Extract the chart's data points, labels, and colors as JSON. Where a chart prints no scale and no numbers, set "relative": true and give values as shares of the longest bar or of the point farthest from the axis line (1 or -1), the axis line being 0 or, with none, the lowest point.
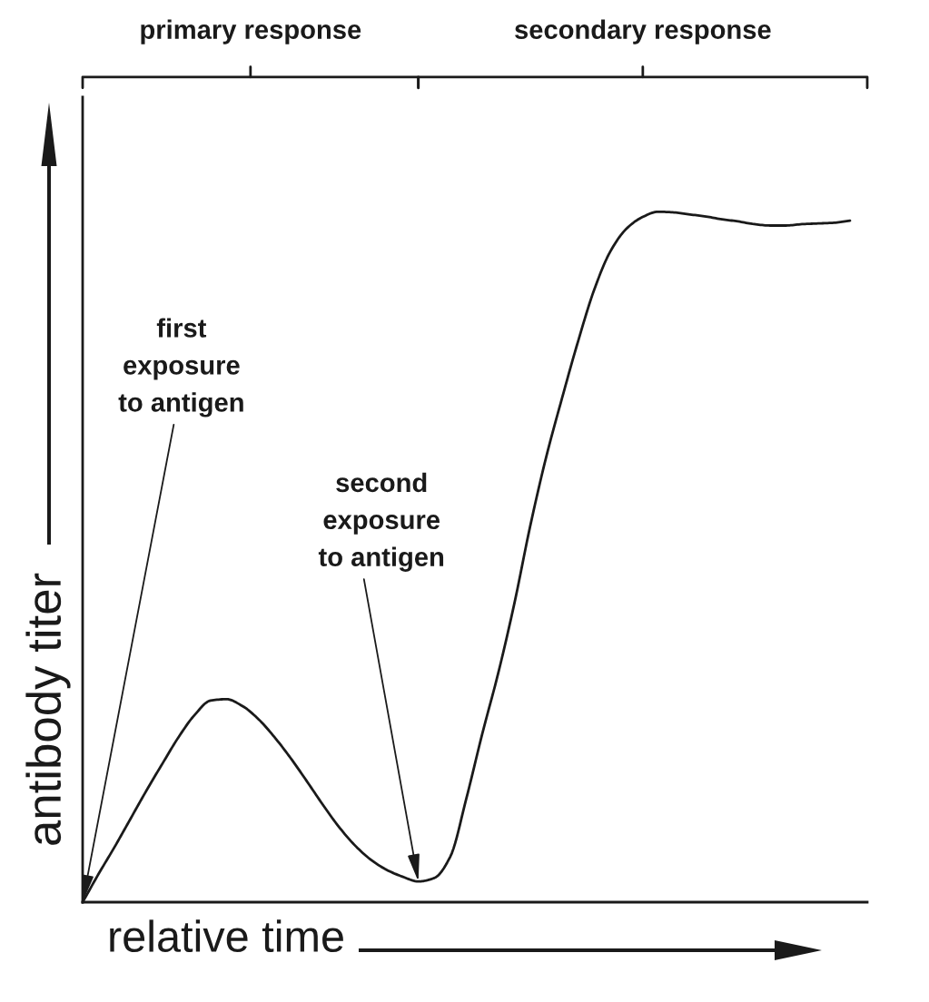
{
  "chart_data": {
    "type": "line",
    "relative": true,
    "xlabel": "relative time",
    "ylabel": "antibody titer",
    "line_style": "solid",
    "annotations": [
      "primary response",
      "secondary response",
      "first\nexposure\nto antigen",
      "second\nexposure\nto antigen"
    ],
    "categories": [
      null,
      null,
      null,
      null,
      null,
      null,
      null,
      null,
      null,
      null,
      null,
      null,
      null,
      null,
      null,
      null,
      null,
      null,
      null,
      null,
      null,
      null,
      null,
      null,
      null,
      null,
      null,
      null,
      null,
      null,
      null,
      null,
      null,
      null,
      null,
      null,
      null,
      null,
      null,
      null,
      null,
      null,
      null,
      null,
      null,
      null,
      null,
      null,
      null
    ],
    "series": [
      {
        "color": "#1a1a1a",
        "values": [
          0,
          0.041,
          0.08,
          0.121,
          0.162,
          0.201,
          0.239,
          0.271,
          0.292,
          0.294,
          0.284,
          0.265,
          0.239,
          0.209,
          0.176,
          0.142,
          0.11,
          0.083,
          0.062,
          0.047,
          0.037,
          0.03,
          0.035,
          0.066,
          0.15,
          0.244,
          0.332,
          0.432,
          0.545,
          0.645,
          0.731,
          0.813,
          0.887,
          0.942,
          0.975,
          0.992,
          1.0,
          0.999,
          0.996,
          0.993,
          0.989,
          0.986,
          0.982,
          0.98,
          0.98,
          0.982,
          0.983,
          0.984,
          0.987
        ]
      }
    ]
  }
}
